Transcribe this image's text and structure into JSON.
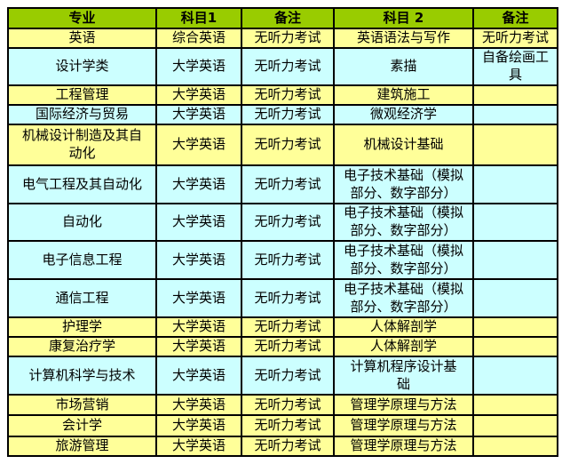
{
  "colors": {
    "header_bg": "#99CC00",
    "row_yellow": "#FFFF99",
    "row_cyan": "#CCFFFF",
    "border": "#000000",
    "page_bg": "#FFFFFF",
    "text": "#000000"
  },
  "table": {
    "headers": [
      "专业",
      "科目1",
      "备注",
      "科目 2",
      "备注"
    ],
    "rows": [
      {
        "major": "英语",
        "subject1": "综合英语",
        "note1": "无听力考试",
        "subject2": "英语语法与写作",
        "note2": "无听力考试",
        "tint": "yellow"
      },
      {
        "major": "设计学类",
        "subject1": "大学英语",
        "note1": "无听力考试",
        "subject2": "素描",
        "note2": "自备绘画工\n具",
        "tint": "cyan"
      },
      {
        "major": "工程管理",
        "subject1": "大学英语",
        "note1": "无听力考试",
        "subject2": "建筑施工",
        "note2": "",
        "tint": "yellow"
      },
      {
        "major": "国际经济与贸易",
        "subject1": "大学英语",
        "note1": "无听力考试",
        "subject2": "微观经济学",
        "note2": "",
        "tint": "cyan"
      },
      {
        "major": "机械设计制造及其自\n动化",
        "subject1": "大学英语",
        "note1": "无听力考试",
        "subject2": "机械设计基础",
        "note2": "",
        "tint": "yellow"
      },
      {
        "major": "电气工程及其自动化",
        "subject1": "大学英语",
        "note1": "无听力考试",
        "subject2": "电子技术基础（模拟\n部分、数字部分）",
        "note2": "",
        "tint": "cyan"
      },
      {
        "major": "自动化",
        "subject1": "大学英语",
        "note1": "无听力考试",
        "subject2": "电子技术基础（模拟\n部分、数字部分）",
        "note2": "",
        "tint": "cyan"
      },
      {
        "major": "电子信息工程",
        "subject1": "大学英语",
        "note1": "无听力考试",
        "subject2": "电子技术基础（模拟\n部分、数字部分）",
        "note2": "",
        "tint": "cyan"
      },
      {
        "major": "通信工程",
        "subject1": "大学英语",
        "note1": "无听力考试",
        "subject2": "电子技术基础（模拟\n部分、数字部分）",
        "note2": "",
        "tint": "cyan"
      },
      {
        "major": "护理学",
        "subject1": "大学英语",
        "note1": "无听力考试",
        "subject2": "人体解剖学",
        "note2": "",
        "tint": "yellow"
      },
      {
        "major": "康复治疗学",
        "subject1": "大学英语",
        "note1": "无听力考试",
        "subject2": "人体解剖学",
        "note2": "",
        "tint": "yellow"
      },
      {
        "major": "计算机科学与技术",
        "subject1": "大学英语",
        "note1": "无听力考试",
        "subject2": "计算机程序设计基\n础",
        "note2": "",
        "tint": "cyan"
      },
      {
        "major": "市场营销",
        "subject1": "大学英语",
        "note1": "无听力考试",
        "subject2": "管理学原理与方法",
        "note2": "",
        "tint": "yellow"
      },
      {
        "major": "会计学",
        "subject1": "大学英语",
        "note1": "无听力考试",
        "subject2": "管理学原理与方法",
        "note2": "",
        "tint": "yellow"
      },
      {
        "major": "旅游管理",
        "subject1": "大学英语",
        "note1": "无听力考试",
        "subject2": "管理学原理与方法",
        "note2": "",
        "tint": "yellow"
      }
    ]
  }
}
